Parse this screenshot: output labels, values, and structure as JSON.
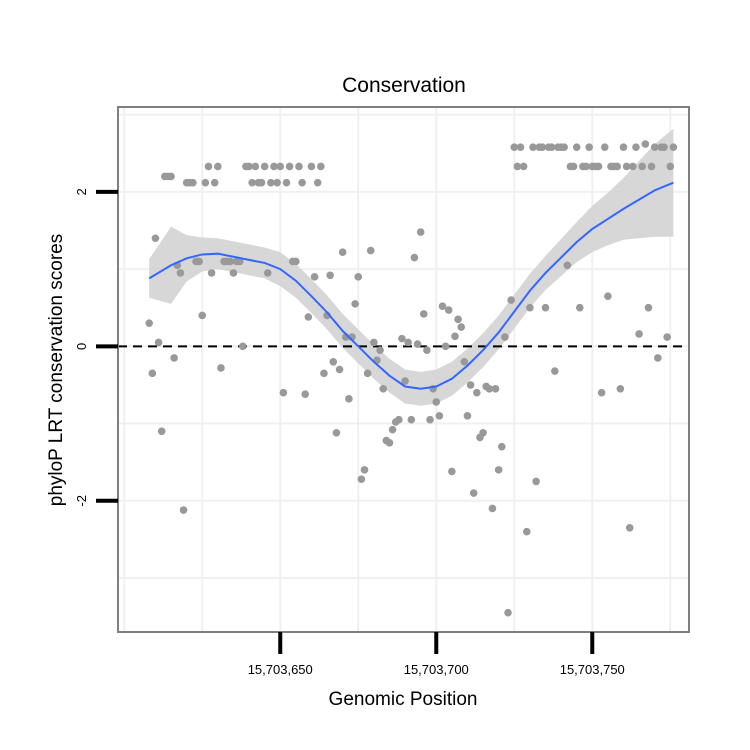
{
  "chart_data": {
    "type": "scatter",
    "title": "Conservation",
    "xlabel": "Genomic Position",
    "ylabel": "phyloP LRT conservation scores",
    "xlim": [
      15703598,
      15703781
    ],
    "ylim": [
      -3.7,
      3.1
    ],
    "xticks": [
      {
        "value": 15703650,
        "label": "15,703,650"
      },
      {
        "value": 15703700,
        "label": "15,703,700"
      },
      {
        "value": 15703750,
        "label": "15,703,750"
      }
    ],
    "yticks": [
      {
        "value": -2,
        "label": "-2"
      },
      {
        "value": 0,
        "label": "0"
      },
      {
        "value": 2,
        "label": "2"
      }
    ],
    "grid": true,
    "reference_line": {
      "y": 0,
      "style": "dashed"
    },
    "colors": {
      "points": "#999999",
      "smooth": "#3366ff",
      "band": "#d3d3d3",
      "grid": "#f0f0f0",
      "frame": "#7f7f7f"
    },
    "points": [
      [
        15703608,
        0.3
      ],
      [
        15703609,
        -0.35
      ],
      [
        15703610,
        1.4
      ],
      [
        15703611,
        0.05
      ],
      [
        15703612,
        -1.1
      ],
      [
        15703613,
        2.2
      ],
      [
        15703614,
        2.2
      ],
      [
        15703615,
        2.2
      ],
      [
        15703616,
        -0.15
      ],
      [
        15703617,
        1.05
      ],
      [
        15703618,
        0.95
      ],
      [
        15703619,
        -2.12
      ],
      [
        15703620,
        2.12
      ],
      [
        15703621,
        2.12
      ],
      [
        15703622,
        2.12
      ],
      [
        15703623,
        1.1
      ],
      [
        15703624,
        1.1
      ],
      [
        15703625,
        0.4
      ],
      [
        15703626,
        2.12
      ],
      [
        15703627,
        2.33
      ],
      [
        15703628,
        0.95
      ],
      [
        15703629,
        2.12
      ],
      [
        15703630,
        2.33
      ],
      [
        15703631,
        -0.28
      ],
      [
        15703632,
        1.1
      ],
      [
        15703633,
        1.1
      ],
      [
        15703634,
        1.1
      ],
      [
        15703635,
        0.95
      ],
      [
        15703636,
        1.1
      ],
      [
        15703637,
        1.1
      ],
      [
        15703638,
        0.0
      ],
      [
        15703639,
        2.33
      ],
      [
        15703640,
        2.33
      ],
      [
        15703641,
        2.12
      ],
      [
        15703642,
        2.33
      ],
      [
        15703643,
        2.12
      ],
      [
        15703644,
        2.12
      ],
      [
        15703645,
        2.33
      ],
      [
        15703646,
        0.95
      ],
      [
        15703647,
        2.12
      ],
      [
        15703648,
        2.33
      ],
      [
        15703649,
        2.12
      ],
      [
        15703650,
        2.33
      ],
      [
        15703651,
        -0.6
      ],
      [
        15703652,
        2.12
      ],
      [
        15703653,
        2.33
      ],
      [
        15703654,
        1.1
      ],
      [
        15703655,
        1.1
      ],
      [
        15703656,
        2.33
      ],
      [
        15703657,
        2.12
      ],
      [
        15703658,
        -0.62
      ],
      [
        15703659,
        0.38
      ],
      [
        15703660,
        2.33
      ],
      [
        15703661,
        0.9
      ],
      [
        15703662,
        2.12
      ],
      [
        15703663,
        2.33
      ],
      [
        15703664,
        -0.35
      ],
      [
        15703665,
        0.4
      ],
      [
        15703666,
        0.92
      ],
      [
        15703667,
        -0.2
      ],
      [
        15703668,
        -1.12
      ],
      [
        15703669,
        -0.3
      ],
      [
        15703670,
        1.22
      ],
      [
        15703671,
        0.12
      ],
      [
        15703672,
        -0.68
      ],
      [
        15703673,
        0.12
      ],
      [
        15703674,
        0.55
      ],
      [
        15703675,
        0.9
      ],
      [
        15703676,
        -1.72
      ],
      [
        15703677,
        -1.6
      ],
      [
        15703678,
        -0.35
      ],
      [
        15703679,
        1.24
      ],
      [
        15703680,
        0.05
      ],
      [
        15703681,
        -0.18
      ],
      [
        15703682,
        -0.05
      ],
      [
        15703683,
        -0.55
      ],
      [
        15703684,
        -1.22
      ],
      [
        15703685,
        -1.25
      ],
      [
        15703686,
        -1.08
      ],
      [
        15703687,
        -0.98
      ],
      [
        15703688,
        -0.95
      ],
      [
        15703689,
        0.1
      ],
      [
        15703690,
        -0.45
      ],
      [
        15703691,
        0.05
      ],
      [
        15703692,
        -0.95
      ],
      [
        15703693,
        1.15
      ],
      [
        15703694,
        0.03
      ],
      [
        15703695,
        1.48
      ],
      [
        15703696,
        0.42
      ],
      [
        15703697,
        -0.05
      ],
      [
        15703698,
        -0.95
      ],
      [
        15703699,
        -0.55
      ],
      [
        15703700,
        -0.72
      ],
      [
        15703701,
        -0.9
      ],
      [
        15703702,
        0.52
      ],
      [
        15703703,
        0.0
      ],
      [
        15703704,
        0.47
      ],
      [
        15703705,
        -1.62
      ],
      [
        15703706,
        0.13
      ],
      [
        15703707,
        0.35
      ],
      [
        15703708,
        0.25
      ],
      [
        15703709,
        -0.2
      ],
      [
        15703710,
        -0.9
      ],
      [
        15703711,
        -0.5
      ],
      [
        15703712,
        -1.9
      ],
      [
        15703713,
        -0.6
      ],
      [
        15703714,
        -1.18
      ],
      [
        15703715,
        -1.12
      ],
      [
        15703716,
        -0.52
      ],
      [
        15703717,
        -0.55
      ],
      [
        15703718,
        -2.1
      ],
      [
        15703719,
        -0.55
      ],
      [
        15703720,
        -1.6
      ],
      [
        15703721,
        -1.3
      ],
      [
        15703722,
        0.12
      ],
      [
        15703723,
        -3.45
      ],
      [
        15703724,
        0.6
      ],
      [
        15703725,
        2.58
      ],
      [
        15703726,
        2.33
      ],
      [
        15703727,
        2.58
      ],
      [
        15703728,
        2.33
      ],
      [
        15703729,
        -2.4
      ],
      [
        15703730,
        0.5
      ],
      [
        15703731,
        2.58
      ],
      [
        15703732,
        -1.75
      ],
      [
        15703733,
        2.58
      ],
      [
        15703734,
        2.58
      ],
      [
        15703735,
        0.5
      ],
      [
        15703736,
        2.58
      ],
      [
        15703737,
        2.58
      ],
      [
        15703738,
        -0.32
      ],
      [
        15703739,
        2.58
      ],
      [
        15703740,
        2.58
      ],
      [
        15703741,
        2.58
      ],
      [
        15703742,
        1.05
      ],
      [
        15703743,
        2.33
      ],
      [
        15703744,
        2.33
      ],
      [
        15703745,
        2.58
      ],
      [
        15703746,
        0.5
      ],
      [
        15703747,
        2.33
      ],
      [
        15703748,
        2.33
      ],
      [
        15703749,
        2.58
      ],
      [
        15703750,
        2.33
      ],
      [
        15703751,
        2.33
      ],
      [
        15703752,
        2.33
      ],
      [
        15703753,
        -0.6
      ],
      [
        15703754,
        2.58
      ],
      [
        15703755,
        0.65
      ],
      [
        15703756,
        2.33
      ],
      [
        15703757,
        2.33
      ],
      [
        15703758,
        2.33
      ],
      [
        15703759,
        -0.55
      ],
      [
        15703760,
        2.58
      ],
      [
        15703761,
        2.33
      ],
      [
        15703762,
        -2.35
      ],
      [
        15703763,
        2.33
      ],
      [
        15703764,
        2.58
      ],
      [
        15703765,
        0.16
      ],
      [
        15703766,
        2.33
      ],
      [
        15703767,
        2.62
      ],
      [
        15703768,
        0.5
      ],
      [
        15703769,
        2.33
      ],
      [
        15703770,
        2.58
      ],
      [
        15703771,
        -0.15
      ],
      [
        15703772,
        2.58
      ],
      [
        15703773,
        2.58
      ],
      [
        15703774,
        0.12
      ],
      [
        15703775,
        2.33
      ],
      [
        15703776,
        2.58
      ]
    ],
    "smooth": [
      [
        15703608,
        0.88,
        0.25
      ],
      [
        15703615,
        1.05,
        0.5
      ],
      [
        15703620,
        1.14,
        0.3
      ],
      [
        15703625,
        1.19,
        0.22
      ],
      [
        15703630,
        1.2,
        0.2
      ],
      [
        15703635,
        1.16,
        0.2
      ],
      [
        15703640,
        1.12,
        0.2
      ],
      [
        15703645,
        1.08,
        0.2
      ],
      [
        15703650,
        1.0,
        0.22
      ],
      [
        15703655,
        0.85,
        0.22
      ],
      [
        15703660,
        0.65,
        0.22
      ],
      [
        15703665,
        0.44,
        0.22
      ],
      [
        15703670,
        0.2,
        0.22
      ],
      [
        15703675,
        0.0,
        0.22
      ],
      [
        15703680,
        -0.2,
        0.22
      ],
      [
        15703685,
        -0.38,
        0.22
      ],
      [
        15703690,
        -0.52,
        0.22
      ],
      [
        15703695,
        -0.55,
        0.22
      ],
      [
        15703700,
        -0.52,
        0.22
      ],
      [
        15703705,
        -0.42,
        0.22
      ],
      [
        15703710,
        -0.25,
        0.22
      ],
      [
        15703715,
        -0.05,
        0.22
      ],
      [
        15703720,
        0.18,
        0.22
      ],
      [
        15703725,
        0.45,
        0.22
      ],
      [
        15703730,
        0.72,
        0.22
      ],
      [
        15703735,
        0.95,
        0.22
      ],
      [
        15703740,
        1.15,
        0.24
      ],
      [
        15703745,
        1.35,
        0.26
      ],
      [
        15703750,
        1.52,
        0.3
      ],
      [
        15703755,
        1.65,
        0.34
      ],
      [
        15703760,
        1.78,
        0.4
      ],
      [
        15703765,
        1.9,
        0.5
      ],
      [
        15703770,
        2.02,
        0.6
      ],
      [
        15703776,
        2.12,
        0.7
      ]
    ]
  }
}
